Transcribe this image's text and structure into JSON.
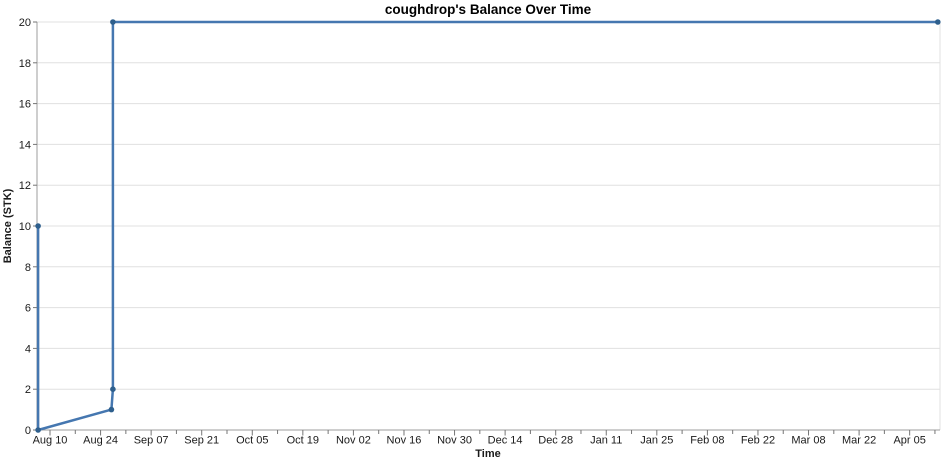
{
  "chart_data": {
    "type": "line",
    "title": "coughdrop's Balance Over Time",
    "xlabel": "Time",
    "ylabel": "Balance (STK)",
    "ylim": [
      0,
      20
    ],
    "y_ticks": [
      0,
      2,
      4,
      6,
      8,
      10,
      12,
      14,
      16,
      18,
      20
    ],
    "xlim_days": [
      0,
      250
    ],
    "x_major_tick_interval_days": 14,
    "x_minor_tick_interval_days": 7,
    "x_ticks": [
      {
        "label": "Aug 10",
        "day": 3.6
      },
      {
        "label": "Aug 24",
        "day": 17.6
      },
      {
        "label": "Sep 07",
        "day": 31.6
      },
      {
        "label": "Sep 21",
        "day": 45.6
      },
      {
        "label": "Oct 05",
        "day": 59.6
      },
      {
        "label": "Oct 19",
        "day": 73.6
      },
      {
        "label": "Nov 02",
        "day": 87.6
      },
      {
        "label": "Nov 16",
        "day": 101.6
      },
      {
        "label": "Nov 30",
        "day": 115.6
      },
      {
        "label": "Dec 14",
        "day": 129.6
      },
      {
        "label": "Dec 28",
        "day": 143.6
      },
      {
        "label": "Jan 11",
        "day": 157.6
      },
      {
        "label": "Jan 25",
        "day": 171.6
      },
      {
        "label": "Feb 08",
        "day": 185.6
      },
      {
        "label": "Feb 22",
        "day": 199.6
      },
      {
        "label": "Mar 08",
        "day": 213.6
      },
      {
        "label": "Mar 22",
        "day": 227.6
      },
      {
        "label": "Apr 05",
        "day": 241.6
      }
    ],
    "grid": "horizontal-only",
    "legend": "none",
    "series": [
      {
        "name": "balance",
        "points": [
          {
            "day": 0.3,
            "value": 10,
            "date_est": "Aug 06"
          },
          {
            "day": 0.3,
            "value": 0,
            "date_est": "Aug 06"
          },
          {
            "day": 20.6,
            "value": 1,
            "date_est": "Aug 26"
          },
          {
            "day": 21.0,
            "value": 2,
            "date_est": "Aug 27"
          },
          {
            "day": 21.0,
            "value": 20,
            "date_est": "Aug 27"
          },
          {
            "day": 249.4,
            "value": 20,
            "date_est": "Apr 12"
          }
        ]
      }
    ],
    "colors": {
      "line": "#4577b0",
      "marker": "#2e5f8d",
      "grid": "#e0e0e0",
      "axis": "#9e9e9e",
      "tick": "#757575",
      "tick_text": "#1a1a1a",
      "title_text": "#000000"
    }
  }
}
